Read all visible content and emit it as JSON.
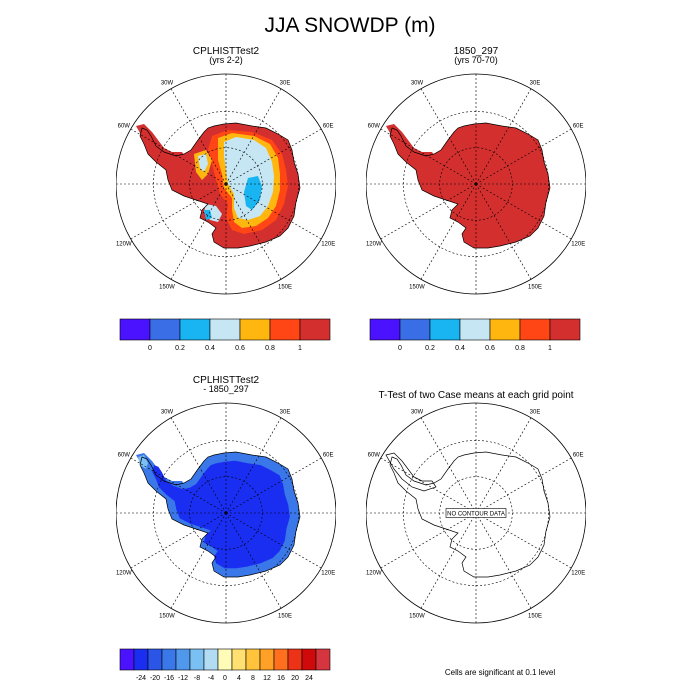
{
  "title": "JJA SNOWDP (m)",
  "footnote": "Cells are significant at 0.1 level",
  "lon_labels": [
    "0",
    "30E",
    "60E",
    "90E",
    "120E",
    "150E",
    "180",
    "150W",
    "120W",
    "90W",
    "60W",
    "30W"
  ],
  "chart_data": [
    {
      "type": "heatmap",
      "title": "CPLHISTTest2",
      "subtitle": "(yrs 2-2)",
      "projection": "south polar stereographic",
      "colorbar": {
        "colors": [
          "#4b12ff",
          "#3a6ee6",
          "#18b5f2",
          "#c6e6f4",
          "#ffb70f",
          "#ff4614",
          "#d32f2f"
        ],
        "labels": [
          "0",
          "0.2",
          "0.4",
          "0.6",
          "0.8",
          "1"
        ]
      }
    },
    {
      "type": "heatmap",
      "title": "1850_297",
      "subtitle": "(yrs 70-70)",
      "projection": "south polar stereographic",
      "colorbar": {
        "colors": [
          "#4b12ff",
          "#3a6ee6",
          "#18b5f2",
          "#c6e6f4",
          "#ffb70f",
          "#ff4614",
          "#d32f2f"
        ],
        "labels": [
          "0",
          "0.2",
          "0.4",
          "0.6",
          "0.8",
          "1"
        ]
      }
    },
    {
      "type": "heatmap",
      "title": "CPLHISTTest2",
      "subtitle": "- 1850_297",
      "projection": "south polar stereographic",
      "colorbar": {
        "colors": [
          "#4b12ff",
          "#1a2ef2",
          "#2a55e6",
          "#3a77e8",
          "#4f98ec",
          "#7ac0f2",
          "#b2dcf4",
          "#fffcb8",
          "#ffe070",
          "#ffc43c",
          "#ffa126",
          "#ff6f1e",
          "#ec3318",
          "#d00a0a",
          "#d4353f"
        ],
        "labels": [
          "-24",
          "-20",
          "-16",
          "-12",
          "-8",
          "-4",
          "0",
          "4",
          "8",
          "12",
          "16",
          "20",
          "24"
        ]
      }
    },
    {
      "type": "heatmap",
      "title": "T-Test of two Case means at each grid point",
      "subtitle": "",
      "projection": "south polar stereographic",
      "annotation": "NO CONTOUR DATA"
    }
  ]
}
